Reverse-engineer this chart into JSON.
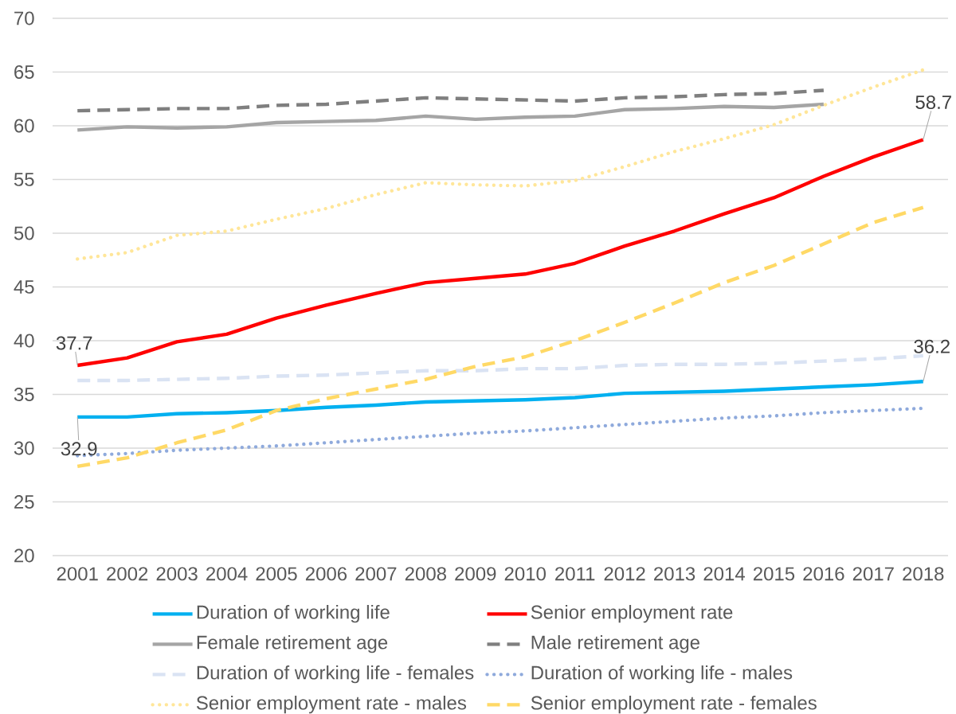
{
  "chart_data": {
    "type": "line",
    "categories": [
      "2001",
      "2002",
      "2003",
      "2004",
      "2005",
      "2006",
      "2007",
      "2008",
      "2009",
      "2010",
      "2011",
      "2012",
      "2013",
      "2014",
      "2015",
      "2016",
      "2017",
      "2018"
    ],
    "ylim": [
      20,
      70
    ],
    "yticks": [
      20,
      25,
      30,
      35,
      40,
      45,
      50,
      55,
      60,
      65,
      70
    ],
    "grid": "y",
    "legend": "bottom",
    "series": [
      {
        "name": "Duration of working life",
        "color": "#00b0f0",
        "line_style": "solid",
        "values": [
          32.9,
          32.9,
          33.2,
          33.3,
          33.5,
          33.8,
          34.0,
          34.3,
          34.4,
          34.5,
          34.7,
          35.1,
          35.2,
          35.3,
          35.5,
          35.7,
          35.9,
          36.2
        ],
        "value_labels": [
          "32.9",
          null,
          null,
          null,
          null,
          null,
          null,
          null,
          null,
          null,
          null,
          null,
          null,
          null,
          null,
          null,
          null,
          "36.2"
        ]
      },
      {
        "name": "Senior employment rate",
        "color": "#ff0000",
        "line_style": "solid",
        "values": [
          37.7,
          38.4,
          39.9,
          40.6,
          42.1,
          43.3,
          44.4,
          45.4,
          45.8,
          46.2,
          47.2,
          48.8,
          50.2,
          51.8,
          53.3,
          55.3,
          57.1,
          58.7
        ],
        "value_labels": [
          "37.7",
          null,
          null,
          null,
          null,
          null,
          null,
          null,
          null,
          null,
          null,
          null,
          null,
          null,
          null,
          null,
          null,
          "58.7"
        ]
      },
      {
        "name": "Female retirement age",
        "color": "#a5a5a5",
        "line_style": "solid",
        "values": [
          59.6,
          59.9,
          59.8,
          59.9,
          60.3,
          60.4,
          60.5,
          60.9,
          60.6,
          60.8,
          60.9,
          61.5,
          61.6,
          61.8,
          61.7,
          62.0,
          null,
          null
        ]
      },
      {
        "name": "Male retirement age",
        "color": "#7f7f7f",
        "line_style": "dashed",
        "values": [
          61.4,
          61.5,
          61.6,
          61.6,
          61.9,
          62.0,
          62.3,
          62.6,
          62.5,
          62.4,
          62.3,
          62.6,
          62.7,
          62.9,
          63.0,
          63.3,
          null,
          null
        ]
      },
      {
        "name": "Duration of working life - females",
        "color": "#dae3f3",
        "line_style": "dashed",
        "values": [
          36.3,
          36.3,
          36.4,
          36.5,
          36.7,
          36.8,
          37.0,
          37.2,
          37.2,
          37.4,
          37.4,
          37.7,
          37.8,
          37.8,
          37.9,
          38.1,
          38.3,
          38.6
        ]
      },
      {
        "name": "Duration of working life - males",
        "color": "#8faadc",
        "line_style": "dotted",
        "values": [
          29.3,
          29.5,
          29.8,
          30.0,
          30.2,
          30.5,
          30.8,
          31.1,
          31.4,
          31.6,
          31.9,
          32.2,
          32.5,
          32.8,
          33.0,
          33.3,
          33.5,
          33.7
        ]
      },
      {
        "name": "Senior employment rate - males",
        "color": "#ffe699",
        "line_style": "dotted",
        "values": [
          47.6,
          48.2,
          49.8,
          50.2,
          51.3,
          52.3,
          53.6,
          54.7,
          54.5,
          54.4,
          54.9,
          56.2,
          57.6,
          58.8,
          60.1,
          61.9,
          63.6,
          65.2
        ]
      },
      {
        "name": "Senior employment rate - females",
        "color": "#ffd966",
        "line_style": "dashed",
        "values": [
          28.3,
          29.1,
          30.5,
          31.7,
          33.5,
          34.6,
          35.5,
          36.4,
          37.6,
          38.5,
          40.0,
          41.7,
          43.5,
          45.4,
          47.0,
          49.0,
          51.0,
          52.4
        ]
      }
    ]
  }
}
